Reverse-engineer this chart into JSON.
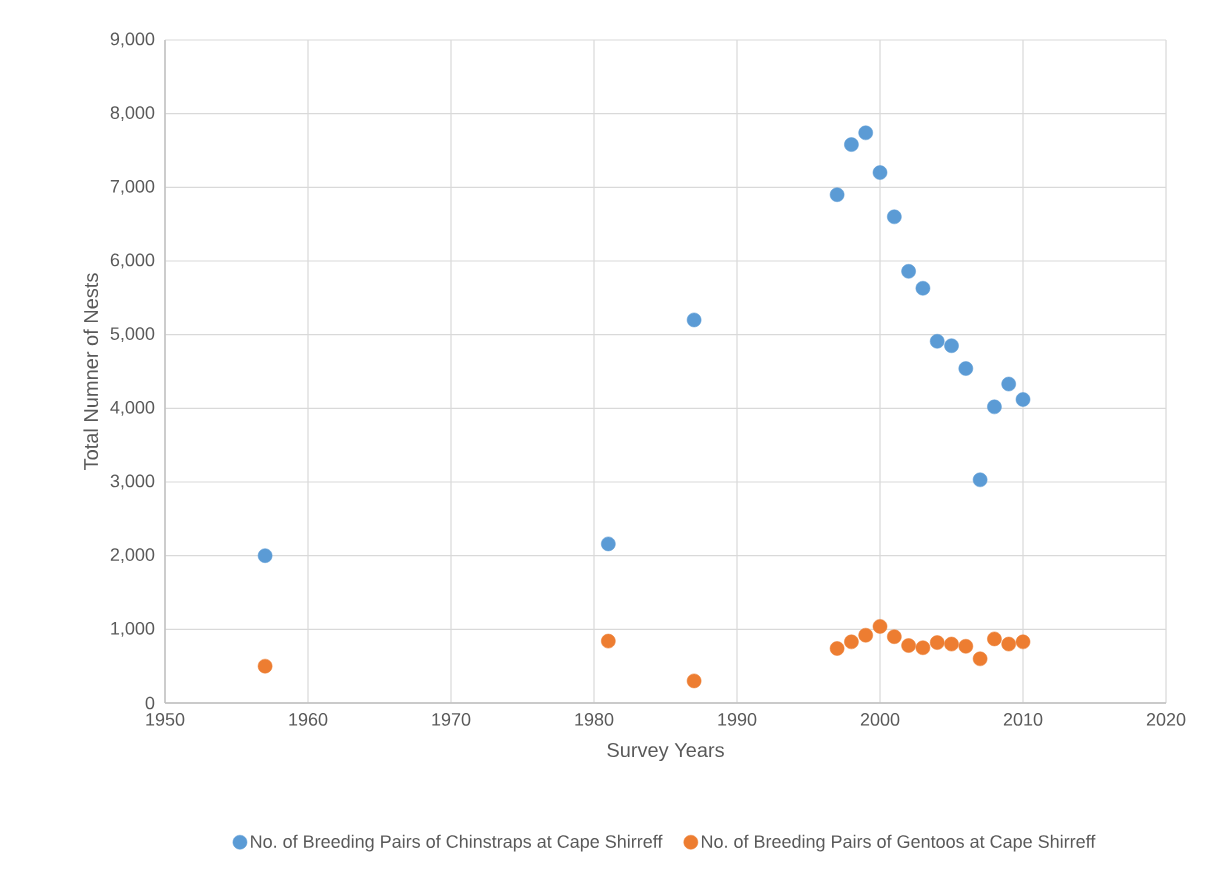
{
  "chart_data": {
    "type": "scatter",
    "xlabel": "Survey Years",
    "ylabel": "Total Numner of Nests",
    "xlim": [
      1950,
      2020
    ],
    "xticks": [
      1950,
      1960,
      1970,
      1980,
      1990,
      2000,
      2010,
      2020
    ],
    "ylim": [
      0,
      9000
    ],
    "yticks": [
      0,
      {
        "value": 1000,
        "label": "1,000"
      },
      {
        "value": 2000,
        "label": "2,000"
      },
      {
        "value": 3000,
        "label": "3,000"
      },
      {
        "value": 4000,
        "label": "4,000"
      },
      {
        "value": 5000,
        "label": "5,000"
      },
      {
        "value": 6000,
        "label": "6,000"
      },
      {
        "value": 7000,
        "label": "7,000"
      },
      {
        "value": 8000,
        "label": "8,000"
      },
      {
        "value": 9000,
        "label": "9,000"
      }
    ],
    "x": [
      1957,
      1981,
      1987,
      1997,
      1998,
      1999,
      2000,
      2001,
      2002,
      2003,
      2004,
      2005,
      2006,
      2007,
      2008,
      2009,
      2010
    ],
    "series": [
      {
        "name": "No. of Breeding Pairs of Chinstraps at Cape Shirreff",
        "color": "#5b9bd5",
        "values": [
          2000,
          2160,
          5200,
          6900,
          7580,
          7740,
          7200,
          6600,
          5860,
          5630,
          4910,
          4850,
          4540,
          3030,
          4020,
          4330,
          4120
        ]
      },
      {
        "name": "No. of Breeding Pairs of Gentoos at Cape Shirreff",
        "color": "#ed7d31",
        "values": [
          500,
          840,
          300,
          740,
          830,
          920,
          1040,
          900,
          780,
          750,
          820,
          800,
          770,
          600,
          870,
          800,
          830
        ]
      }
    ],
    "grid": true,
    "legend": "bottom",
    "marker": "circle"
  }
}
